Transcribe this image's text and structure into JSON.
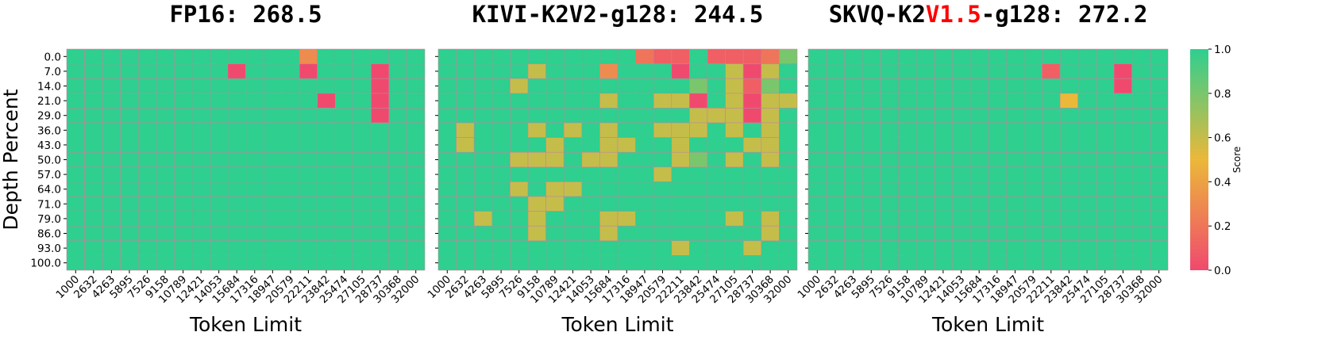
{
  "chart_data": [
    {
      "type": "heatmap",
      "title": {
        "prefix": "FP16: 268.5",
        "highlight": "",
        "suffix": ""
      },
      "xlabel": "Token Limit",
      "ylabel": "Depth Percent",
      "x": [
        "1000",
        "2632",
        "4263",
        "5895",
        "7526",
        "9158",
        "10789",
        "12421",
        "14053",
        "15684",
        "17316",
        "18947",
        "20579",
        "22211",
        "23842",
        "25474",
        "27105",
        "28737",
        "30368",
        "32000"
      ],
      "y": [
        "0.0",
        "7.0",
        "14.0",
        "21.0",
        "29.0",
        "36.0",
        "43.0",
        "50.0",
        "57.0",
        "64.0",
        "71.0",
        "79.0",
        "86.0",
        "93.0",
        "100.0"
      ],
      "z": [
        [
          1,
          1,
          1,
          1,
          1,
          1,
          1,
          1,
          1,
          1,
          1,
          1,
          1,
          0.3,
          1,
          1,
          1,
          1,
          1,
          1
        ],
        [
          1,
          1,
          1,
          1,
          1,
          1,
          1,
          1,
          1,
          0,
          1,
          1,
          1,
          0,
          1,
          1,
          1,
          0,
          1,
          1
        ],
        [
          1,
          1,
          1,
          1,
          1,
          1,
          1,
          1,
          1,
          1,
          1,
          1,
          1,
          1,
          1,
          1,
          1,
          0,
          1,
          1
        ],
        [
          1,
          1,
          1,
          1,
          1,
          1,
          1,
          1,
          1,
          1,
          1,
          1,
          1,
          1,
          0,
          1,
          1,
          0,
          1,
          1
        ],
        [
          1,
          1,
          1,
          1,
          1,
          1,
          1,
          1,
          1,
          1,
          1,
          1,
          1,
          1,
          1,
          1,
          1,
          0,
          1,
          1
        ],
        [
          1,
          1,
          1,
          1,
          1,
          1,
          1,
          1,
          1,
          1,
          1,
          1,
          1,
          1,
          1,
          1,
          1,
          1,
          1,
          1
        ],
        [
          1,
          1,
          1,
          1,
          1,
          1,
          1,
          1,
          1,
          1,
          1,
          1,
          1,
          1,
          1,
          1,
          1,
          1,
          1,
          1
        ],
        [
          1,
          1,
          1,
          1,
          1,
          1,
          1,
          1,
          1,
          1,
          1,
          1,
          1,
          1,
          1,
          1,
          1,
          1,
          1,
          1
        ],
        [
          1,
          1,
          1,
          1,
          1,
          1,
          1,
          1,
          1,
          1,
          1,
          1,
          1,
          1,
          1,
          1,
          1,
          1,
          1,
          1
        ],
        [
          1,
          1,
          1,
          1,
          1,
          1,
          1,
          1,
          1,
          1,
          1,
          1,
          1,
          1,
          1,
          1,
          1,
          1,
          1,
          1
        ],
        [
          1,
          1,
          1,
          1,
          1,
          1,
          1,
          1,
          1,
          1,
          1,
          1,
          1,
          1,
          1,
          1,
          1,
          1,
          1,
          1
        ],
        [
          1,
          1,
          1,
          1,
          1,
          1,
          1,
          1,
          1,
          1,
          1,
          1,
          1,
          1,
          1,
          1,
          1,
          1,
          1,
          1
        ],
        [
          1,
          1,
          1,
          1,
          1,
          1,
          1,
          1,
          1,
          1,
          1,
          1,
          1,
          1,
          1,
          1,
          1,
          1,
          1,
          1
        ],
        [
          1,
          1,
          1,
          1,
          1,
          1,
          1,
          1,
          1,
          1,
          1,
          1,
          1,
          1,
          1,
          1,
          1,
          1,
          1,
          1
        ],
        [
          1,
          1,
          1,
          1,
          1,
          1,
          1,
          1,
          1,
          1,
          1,
          1,
          1,
          1,
          1,
          1,
          1,
          1,
          1,
          1
        ]
      ]
    },
    {
      "type": "heatmap",
      "title": {
        "prefix": "KIVI-K2V2-g128: 244.5",
        "highlight": "",
        "suffix": ""
      },
      "xlabel": "Token Limit",
      "ylabel": "",
      "x": [
        "1000",
        "2632",
        "4263",
        "5895",
        "7526",
        "9158",
        "10789",
        "12421",
        "14053",
        "15684",
        "17316",
        "18947",
        "20579",
        "22211",
        "23842",
        "25474",
        "27105",
        "28737",
        "30368",
        "32000"
      ],
      "y": [
        "0.0",
        "7.0",
        "14.0",
        "21.0",
        "29.0",
        "36.0",
        "43.0",
        "50.0",
        "57.0",
        "64.0",
        "71.0",
        "79.0",
        "86.0",
        "93.0",
        "100.0"
      ],
      "z": [
        [
          1,
          1,
          1,
          1,
          1,
          1,
          1,
          1,
          1,
          1,
          1,
          0.2,
          0.1,
          0.1,
          1,
          0.1,
          0.1,
          0.1,
          0.2,
          0.8
        ],
        [
          1,
          1,
          1,
          1,
          1,
          0.6,
          1,
          1,
          1,
          0.3,
          1,
          1,
          1,
          0,
          1,
          1,
          0.6,
          0,
          0.6,
          1
        ],
        [
          1,
          1,
          1,
          1,
          0.6,
          1,
          1,
          1,
          1,
          1,
          1,
          1,
          1,
          1,
          0.8,
          1,
          0.6,
          0.1,
          0.8,
          1
        ],
        [
          1,
          1,
          1,
          1,
          1,
          1,
          1,
          1,
          1,
          0.6,
          1,
          1,
          0.6,
          0.6,
          0,
          1,
          0.6,
          0,
          0.6,
          0.6
        ],
        [
          1,
          1,
          1,
          1,
          1,
          1,
          1,
          1,
          1,
          1,
          1,
          1,
          1,
          1,
          0.6,
          0.6,
          0.6,
          0,
          0.6,
          1
        ],
        [
          1,
          0.6,
          1,
          1,
          1,
          0.6,
          1,
          0.6,
          1,
          0.6,
          1,
          1,
          0.6,
          0.6,
          0.6,
          1,
          0.6,
          1,
          0.6,
          1
        ],
        [
          1,
          0.6,
          1,
          1,
          1,
          1,
          0.6,
          1,
          1,
          0.6,
          0.6,
          1,
          1,
          0.6,
          1,
          1,
          1,
          0.6,
          0.6,
          1
        ],
        [
          1,
          1,
          1,
          1,
          0.6,
          0.6,
          0.6,
          1,
          0.6,
          0.6,
          1,
          1,
          1,
          0.6,
          0.8,
          1,
          0.6,
          1,
          0.6,
          1
        ],
        [
          1,
          1,
          1,
          1,
          1,
          1,
          1,
          1,
          1,
          1,
          1,
          1,
          0.6,
          1,
          1,
          1,
          1,
          1,
          1,
          1
        ],
        [
          1,
          1,
          1,
          1,
          0.6,
          1,
          0.6,
          0.6,
          1,
          1,
          1,
          1,
          1,
          1,
          1,
          1,
          1,
          1,
          1,
          1
        ],
        [
          1,
          1,
          1,
          1,
          1,
          0.6,
          0.6,
          1,
          1,
          1,
          1,
          1,
          1,
          1,
          1,
          1,
          1,
          1,
          1,
          1
        ],
        [
          1,
          1,
          0.6,
          1,
          1,
          0.6,
          1,
          1,
          1,
          0.6,
          0.6,
          1,
          1,
          1,
          1,
          1,
          0.6,
          1,
          0.6,
          1
        ],
        [
          1,
          1,
          1,
          1,
          1,
          0.6,
          1,
          1,
          1,
          0.6,
          1,
          1,
          1,
          1,
          1,
          1,
          1,
          1,
          0.6,
          1
        ],
        [
          1,
          1,
          1,
          1,
          1,
          1,
          1,
          1,
          1,
          1,
          1,
          1,
          1,
          0.6,
          1,
          1,
          1,
          0.6,
          1,
          1
        ],
        [
          1,
          1,
          1,
          1,
          1,
          1,
          1,
          1,
          1,
          1,
          1,
          1,
          1,
          1,
          1,
          1,
          1,
          1,
          1,
          1
        ]
      ]
    },
    {
      "type": "heatmap",
      "title": {
        "prefix": "SKVQ-K2",
        "highlight": "V1.5",
        "suffix": "-g128: 272.2"
      },
      "xlabel": "Token Limit",
      "ylabel": "",
      "x": [
        "1000",
        "2632",
        "4263",
        "5895",
        "7526",
        "9158",
        "10789",
        "12421",
        "14053",
        "15684",
        "17316",
        "18947",
        "20579",
        "22211",
        "23842",
        "25474",
        "27105",
        "28737",
        "30368",
        "32000"
      ],
      "y": [
        "0.0",
        "7.0",
        "14.0",
        "21.0",
        "29.0",
        "36.0",
        "43.0",
        "50.0",
        "57.0",
        "64.0",
        "71.0",
        "79.0",
        "86.0",
        "93.0",
        "100.0"
      ],
      "z": [
        [
          1,
          1,
          1,
          1,
          1,
          1,
          1,
          1,
          1,
          1,
          1,
          1,
          1,
          1,
          1,
          1,
          1,
          1,
          1,
          1
        ],
        [
          1,
          1,
          1,
          1,
          1,
          1,
          1,
          1,
          1,
          1,
          1,
          1,
          1,
          0.1,
          1,
          1,
          1,
          0,
          1,
          1
        ],
        [
          1,
          1,
          1,
          1,
          1,
          1,
          1,
          1,
          1,
          1,
          1,
          1,
          1,
          1,
          1,
          1,
          1,
          0,
          1,
          1
        ],
        [
          1,
          1,
          1,
          1,
          1,
          1,
          1,
          1,
          1,
          1,
          1,
          1,
          1,
          1,
          0.5,
          1,
          1,
          1,
          1,
          1
        ],
        [
          1,
          1,
          1,
          1,
          1,
          1,
          1,
          1,
          1,
          1,
          1,
          1,
          1,
          1,
          1,
          1,
          1,
          1,
          1,
          1
        ],
        [
          1,
          1,
          1,
          1,
          1,
          1,
          1,
          1,
          1,
          1,
          1,
          1,
          1,
          1,
          1,
          1,
          1,
          1,
          1,
          1
        ],
        [
          1,
          1,
          1,
          1,
          1,
          1,
          1,
          1,
          1,
          1,
          1,
          1,
          1,
          1,
          1,
          1,
          1,
          1,
          1,
          1
        ],
        [
          1,
          1,
          1,
          1,
          1,
          1,
          1,
          1,
          1,
          1,
          1,
          1,
          1,
          1,
          1,
          1,
          1,
          1,
          1,
          1
        ],
        [
          1,
          1,
          1,
          1,
          1,
          1,
          1,
          1,
          1,
          1,
          1,
          1,
          1,
          1,
          1,
          1,
          1,
          1,
          1,
          1
        ],
        [
          1,
          1,
          1,
          1,
          1,
          1,
          1,
          1,
          1,
          1,
          1,
          1,
          1,
          1,
          1,
          1,
          1,
          1,
          1,
          1
        ],
        [
          1,
          1,
          1,
          1,
          1,
          1,
          1,
          1,
          1,
          1,
          1,
          1,
          1,
          1,
          1,
          1,
          1,
          1,
          1,
          1
        ],
        [
          1,
          1,
          1,
          1,
          1,
          1,
          1,
          1,
          1,
          1,
          1,
          1,
          1,
          1,
          1,
          1,
          1,
          1,
          1,
          1
        ],
        [
          1,
          1,
          1,
          1,
          1,
          1,
          1,
          1,
          1,
          1,
          1,
          1,
          1,
          1,
          1,
          1,
          1,
          1,
          1,
          1
        ],
        [
          1,
          1,
          1,
          1,
          1,
          1,
          1,
          1,
          1,
          1,
          1,
          1,
          1,
          1,
          1,
          1,
          1,
          1,
          1,
          1
        ],
        [
          1,
          1,
          1,
          1,
          1,
          1,
          1,
          1,
          1,
          1,
          1,
          1,
          1,
          1,
          1,
          1,
          1,
          1,
          1,
          1
        ]
      ]
    }
  ],
  "colorbar": {
    "label": "Score",
    "ticks": [
      "0.0",
      "0.2",
      "0.4",
      "0.6",
      "0.8",
      "1.0"
    ],
    "range": [
      0,
      1
    ],
    "colors": [
      "#F0496E",
      "#EBB839",
      "#2ECF8F"
    ]
  },
  "title_highlight_color": "#FF0000"
}
